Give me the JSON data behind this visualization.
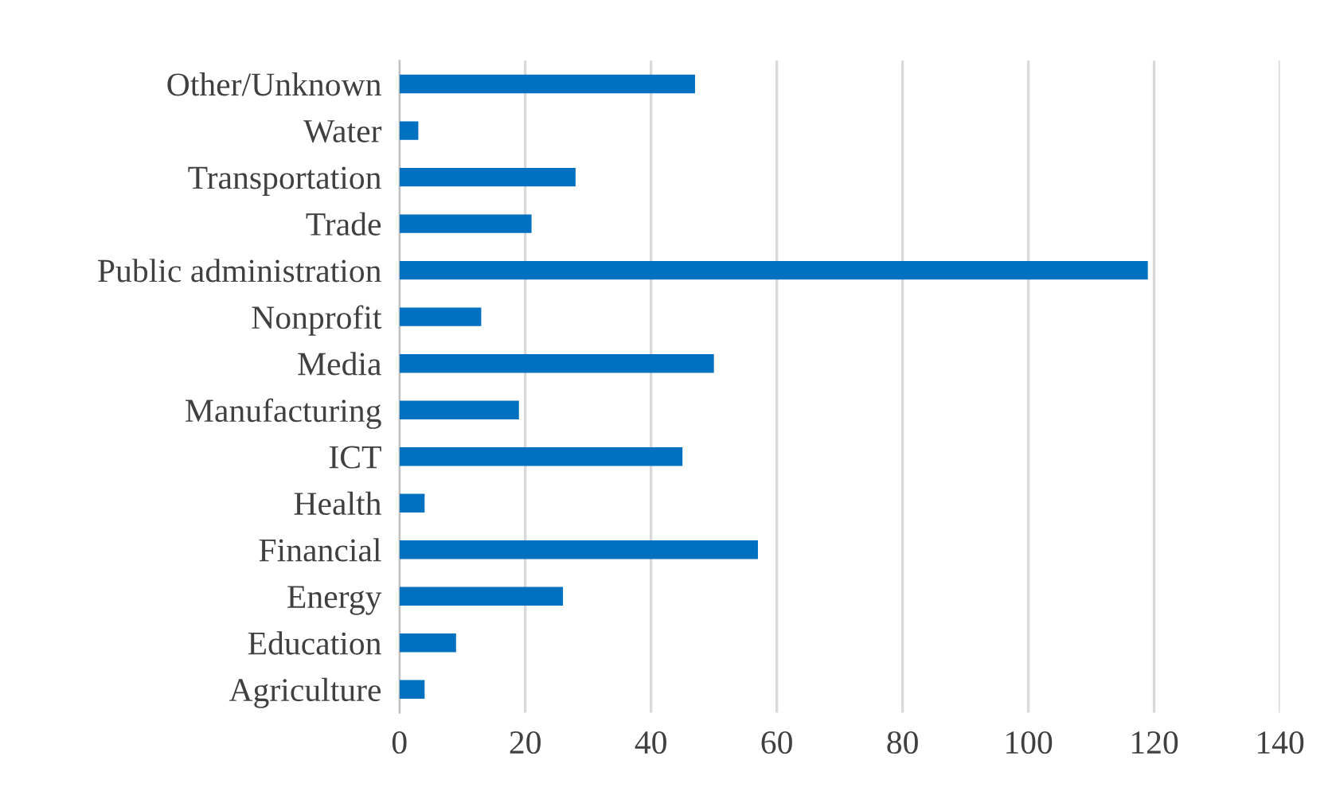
{
  "chart_data": {
    "type": "bar",
    "orientation": "horizontal",
    "categories": [
      "Other/Unknown",
      "Water",
      "Transportation",
      "Trade",
      "Public administration",
      "Nonprofit",
      "Media",
      "Manufacturing",
      "ICT",
      "Health",
      "Financial",
      "Energy",
      "Education",
      "Agriculture"
    ],
    "values": [
      47,
      3,
      28,
      21,
      119,
      13,
      50,
      19,
      45,
      4,
      57,
      26,
      9,
      4
    ],
    "color": "#0070c0",
    "xlim": [
      0,
      140
    ],
    "xticks": [
      0,
      20,
      40,
      60,
      80,
      100,
      120,
      140
    ],
    "grid": "x"
  }
}
